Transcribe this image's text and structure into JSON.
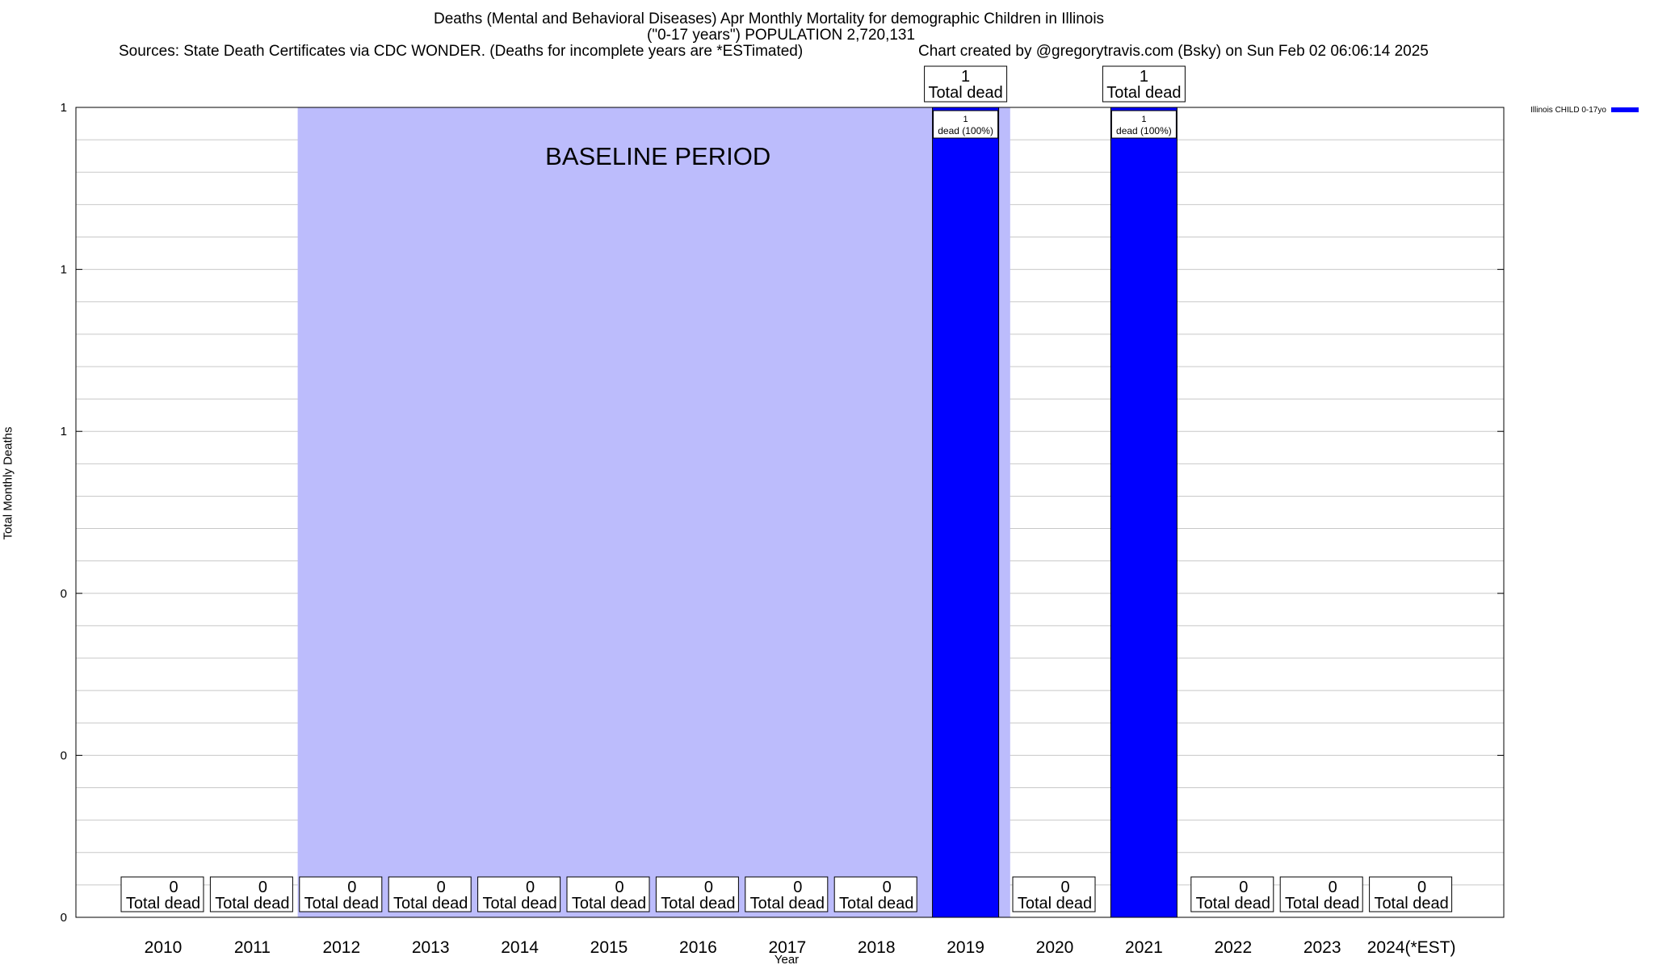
{
  "header": {
    "title_line1": "Deaths (Mental and Behavioral Diseases) Apr Monthly Mortality for demographic Children in Illinois",
    "title_line2": "(\"0-17 years\") POPULATION 2,720,131",
    "sources": "Sources: State Death Certificates via CDC WONDER. (Deaths for incomplete years are *ESTimated)",
    "credit": "Chart created by @gregorytravis.com (Bsky) on Sun Feb 02 06:06:14 2025"
  },
  "chart_data": {
    "type": "bar",
    "title": "Deaths (Mental and Behavioral Diseases) Apr Monthly Mortality for demographic Children in Illinois",
    "xlabel": "Year",
    "ylabel": "Total Monthly Deaths",
    "categories": [
      "2010",
      "2011",
      "2012",
      "2013",
      "2014",
      "2015",
      "2016",
      "2017",
      "2018",
      "2019",
      "2020",
      "2021",
      "2022",
      "2023",
      "2024(*EST)"
    ],
    "series": [
      {
        "name": "Illinois CHILD 0-17yo",
        "color": "#0000ff",
        "values": [
          0,
          0,
          0,
          0,
          0,
          0,
          0,
          0,
          0,
          1,
          0,
          1,
          0,
          0,
          0
        ]
      }
    ],
    "ylim": [
      0,
      1
    ],
    "ytick_labels": [
      "0",
      "0",
      "0",
      "1",
      "1",
      "1"
    ],
    "grid": true,
    "legend_position": "top-right, outside plot",
    "total_label": "Total dead",
    "bar_inner_labels": {
      "2019": "dead (100%)",
      "2021": "dead (100%)"
    },
    "baseline_period": {
      "label": "BASELINE PERIOD",
      "from": "2012",
      "to": "2019",
      "color": "#bcbcfc"
    }
  }
}
